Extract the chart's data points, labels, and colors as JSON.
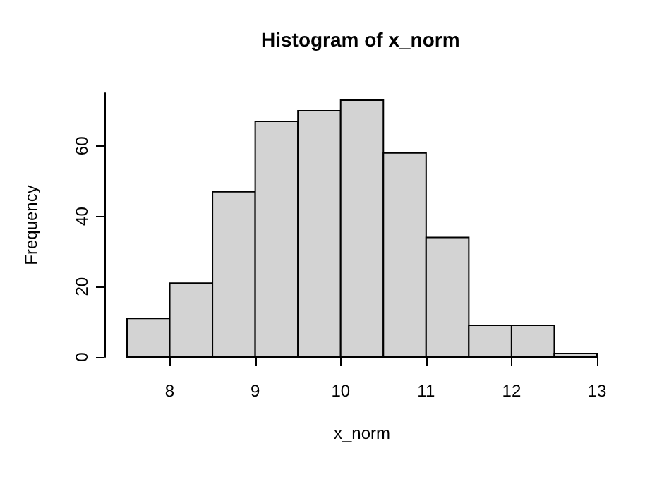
{
  "chart_data": {
    "type": "histogram",
    "title": "Histogram of x_norm",
    "xlabel": "x_norm",
    "ylabel": "Frequency",
    "bins": [
      7.5,
      8,
      8.5,
      9,
      9.5,
      10,
      10.5,
      11,
      11.5,
      12,
      12.5,
      13
    ],
    "values": [
      11,
      21,
      47,
      67,
      70,
      73,
      58,
      34,
      9,
      9,
      1
    ],
    "color": "#d3d3d3",
    "xlim": [
      7.5,
      13
    ],
    "xticks": [
      8,
      9,
      10,
      11,
      12,
      13
    ],
    "ylim": [
      0,
      75
    ],
    "yticks": [
      0,
      20,
      40,
      60
    ],
    "grid": false
  }
}
